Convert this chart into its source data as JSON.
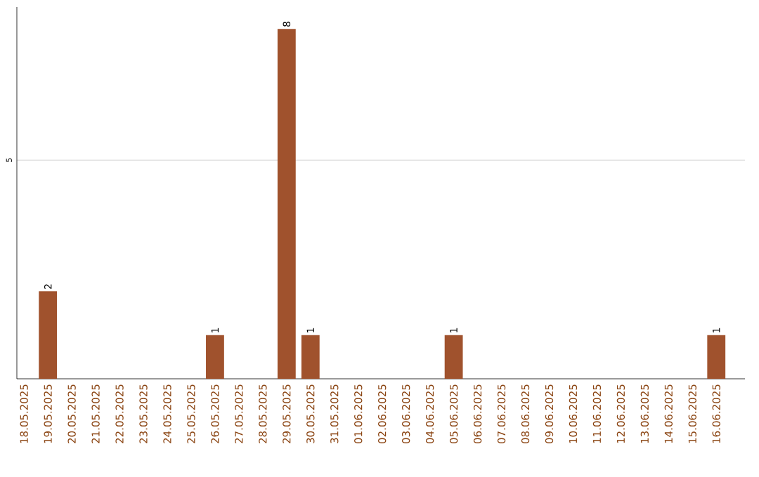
{
  "chart_data": {
    "type": "bar",
    "categories": [
      "18.05.2025",
      "19.05.2025",
      "20.05.2025",
      "21.05.2025",
      "22.05.2025",
      "23.05.2025",
      "24.05.2025",
      "25.05.2025",
      "26.05.2025",
      "27.05.2025",
      "28.05.2025",
      "29.05.2025",
      "30.05.2025",
      "31.05.2025",
      "01.06.2025",
      "02.06.2025",
      "03.06.2025",
      "04.06.2025",
      "05.06.2025",
      "06.06.2025",
      "07.06.2025",
      "08.06.2025",
      "09.06.2025",
      "10.06.2025",
      "11.06.2025",
      "12.06.2025",
      "13.06.2025",
      "14.06.2025",
      "15.06.2025",
      "16.06.2025"
    ],
    "values": [
      0,
      2,
      0,
      0,
      0,
      0,
      0,
      0,
      1,
      0,
      0,
      8,
      1,
      0,
      0,
      0,
      0,
      0,
      1,
      0,
      0,
      0,
      0,
      0,
      0,
      0,
      0,
      0,
      0,
      1
    ],
    "value_labels": [
      null,
      "2",
      null,
      null,
      null,
      null,
      null,
      null,
      "1",
      null,
      null,
      "8",
      "1",
      null,
      null,
      null,
      null,
      null,
      "1",
      null,
      null,
      null,
      null,
      null,
      null,
      null,
      null,
      null,
      null,
      "1"
    ],
    "color": "#a0522d",
    "ylim": [
      0,
      8.5
    ],
    "yticks": [
      5
    ],
    "grid": "y"
  }
}
